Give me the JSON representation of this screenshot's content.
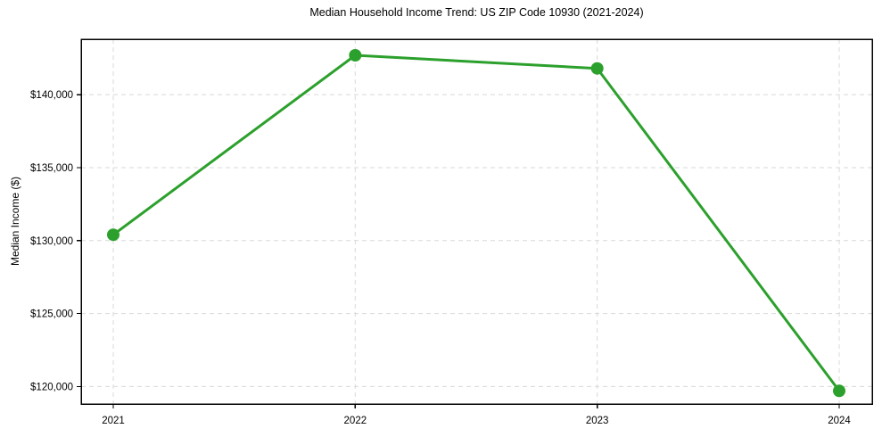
{
  "chart_data": {
    "type": "line",
    "title": "Median Household Income Trend: US ZIP Code 10930 (2021-2024)",
    "xlabel": "",
    "ylabel": "Median Income ($)",
    "x": [
      2021,
      2022,
      2023,
      2024
    ],
    "x_tick_labels": [
      "2021",
      "2022",
      "2023",
      "2024"
    ],
    "series": [
      {
        "name": "Median Household Income",
        "values": [
          130400,
          142700,
          141800,
          119700
        ]
      }
    ],
    "y_tick_values": [
      120000,
      125000,
      130000,
      135000,
      140000
    ],
    "y_tick_labels": [
      "$120,000",
      "$125,000",
      "$130,000",
      "$135,000",
      "$140,000"
    ],
    "ylim": [
      118800,
      143800
    ],
    "grid": true,
    "legend": "none",
    "line_color": "#2ca02c",
    "marker": "circle"
  }
}
